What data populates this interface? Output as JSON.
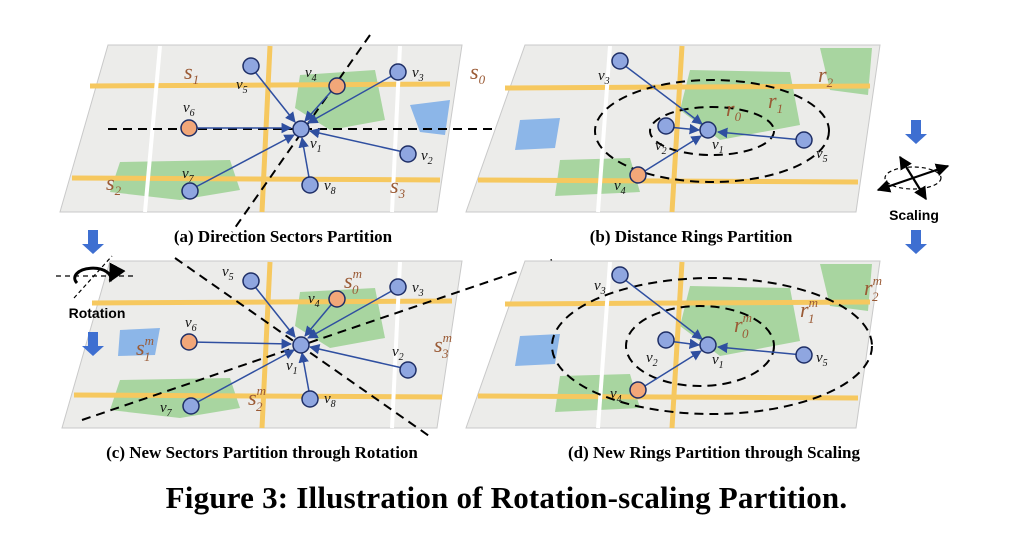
{
  "figure_caption": "Figure 3: Illustration of Rotation-scaling Partition.",
  "panels": {
    "a": {
      "label": "(a) Direction Sectors Partition"
    },
    "b": {
      "label": "(b) Distance Rings Partition"
    },
    "c": {
      "label": "(c) New Sectors Partition through Rotation"
    },
    "d": {
      "label": "(d) New Rings Partition through Scaling"
    }
  },
  "side": {
    "rotation": "Rotation",
    "scaling": "Scaling"
  },
  "nodes": {
    "v": "v",
    "s1": "1",
    "s2": "2",
    "s3": "3",
    "s4": "4",
    "s5": "5",
    "s6": "6",
    "s7": "7",
    "s8": "8"
  },
  "sectors": {
    "s": "s",
    "sub0": "0",
    "sub1": "1",
    "sub2": "2",
    "sub3": "3",
    "m": "m"
  },
  "rings": {
    "r": "r",
    "sub0": "0",
    "sub1": "1",
    "sub2": "2",
    "m": "m"
  },
  "colors": {
    "blue_node": "#8fa6e0",
    "orange_node": "#f2a779",
    "map_bg": "#ececea",
    "park": "#a8d5a0",
    "road": "#f6c85f",
    "water": "#8cb6e8",
    "arrow": "#2f4fa0",
    "label_brown": "#9a5a35",
    "side_arrow": "#3e6fd1"
  }
}
